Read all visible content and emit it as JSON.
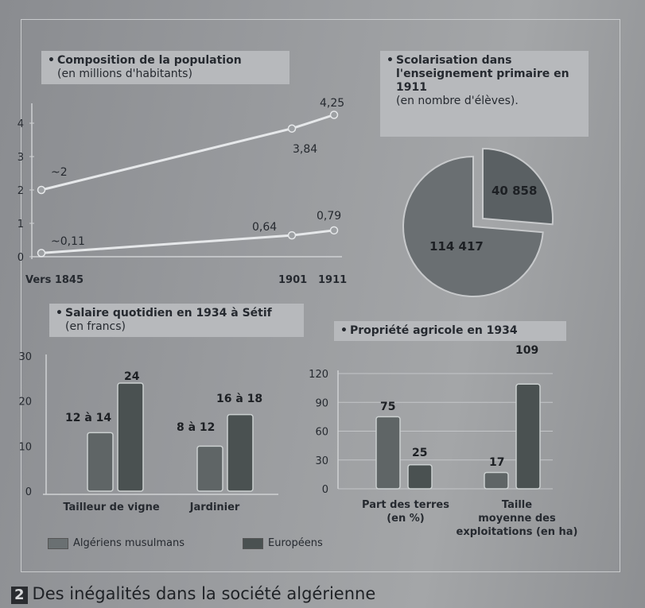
{
  "chart_data": [
    {
      "type": "line",
      "title": "Composition de la population",
      "subtitle": "(en millions d'habitants)",
      "categories": [
        "Vers 1845",
        "1901",
        "1911"
      ],
      "y_ticks": [
        "0",
        "1",
        "2",
        "3",
        "4"
      ],
      "ylim": [
        0,
        4.5
      ],
      "series": [
        {
          "values": [
            2,
            3.84,
            4.25
          ],
          "labels": [
            "~2",
            "3,84",
            "4,25"
          ]
        },
        {
          "values": [
            0.11,
            0.64,
            0.79
          ],
          "labels": [
            "~0,11",
            "0,64",
            "0,79"
          ]
        }
      ]
    },
    {
      "type": "pie",
      "title": "Scolarisation dans l'enseignement primaire en 1911",
      "subtitle": "(en nombre d'élèves).",
      "values": [
        40858,
        114417
      ],
      "labels": [
        "40 858",
        "114 417"
      ]
    },
    {
      "type": "bar",
      "title": "Salaire quotidien en 1934 à Sétif",
      "subtitle": "(en francs)",
      "categories": [
        "Tailleur de vigne",
        "Jardinier"
      ],
      "y_ticks": [
        "0",
        "10",
        "20",
        "30"
      ],
      "ylim": [
        0,
        30
      ],
      "series": [
        {
          "name": "Algériens musulmans",
          "values": [
            13,
            10
          ],
          "labels": [
            "12 à 14",
            "8 à 12"
          ]
        },
        {
          "name": "Européens",
          "values": [
            24,
            17
          ],
          "labels": [
            "24",
            "16 à 18"
          ]
        }
      ]
    },
    {
      "type": "bar",
      "title": "Propriété agricole en 1934",
      "categories": [
        "Part des terres (en %)",
        "Taille moyenne des exploitations (en ha)"
      ],
      "category_lines": [
        [
          "Part des terres",
          "(en %)"
        ],
        [
          "Taille",
          "moyenne des",
          "exploitations (en ha)"
        ]
      ],
      "y_ticks": [
        "0",
        "30",
        "60",
        "90",
        "120"
      ],
      "ylim": [
        0,
        120
      ],
      "grid": true,
      "series": [
        {
          "name": "Algériens musulmans",
          "values": [
            75,
            17
          ],
          "labels": [
            "75",
            "17"
          ]
        },
        {
          "name": "Européens",
          "values": [
            25,
            109
          ],
          "labels": [
            "25",
            "109"
          ]
        }
      ]
    }
  ],
  "legend": {
    "muslim_label": "Algériens musulmans",
    "european_label": "Européens"
  },
  "colors": {
    "muslim": "#5f6566",
    "european": "#4a5151",
    "pie_muslim": "#6a6f72",
    "pie_european": "#5a6063",
    "line": "#e6e8ea"
  },
  "caption": {
    "number": "2",
    "text": "Des inégalités dans la société algérienne"
  }
}
